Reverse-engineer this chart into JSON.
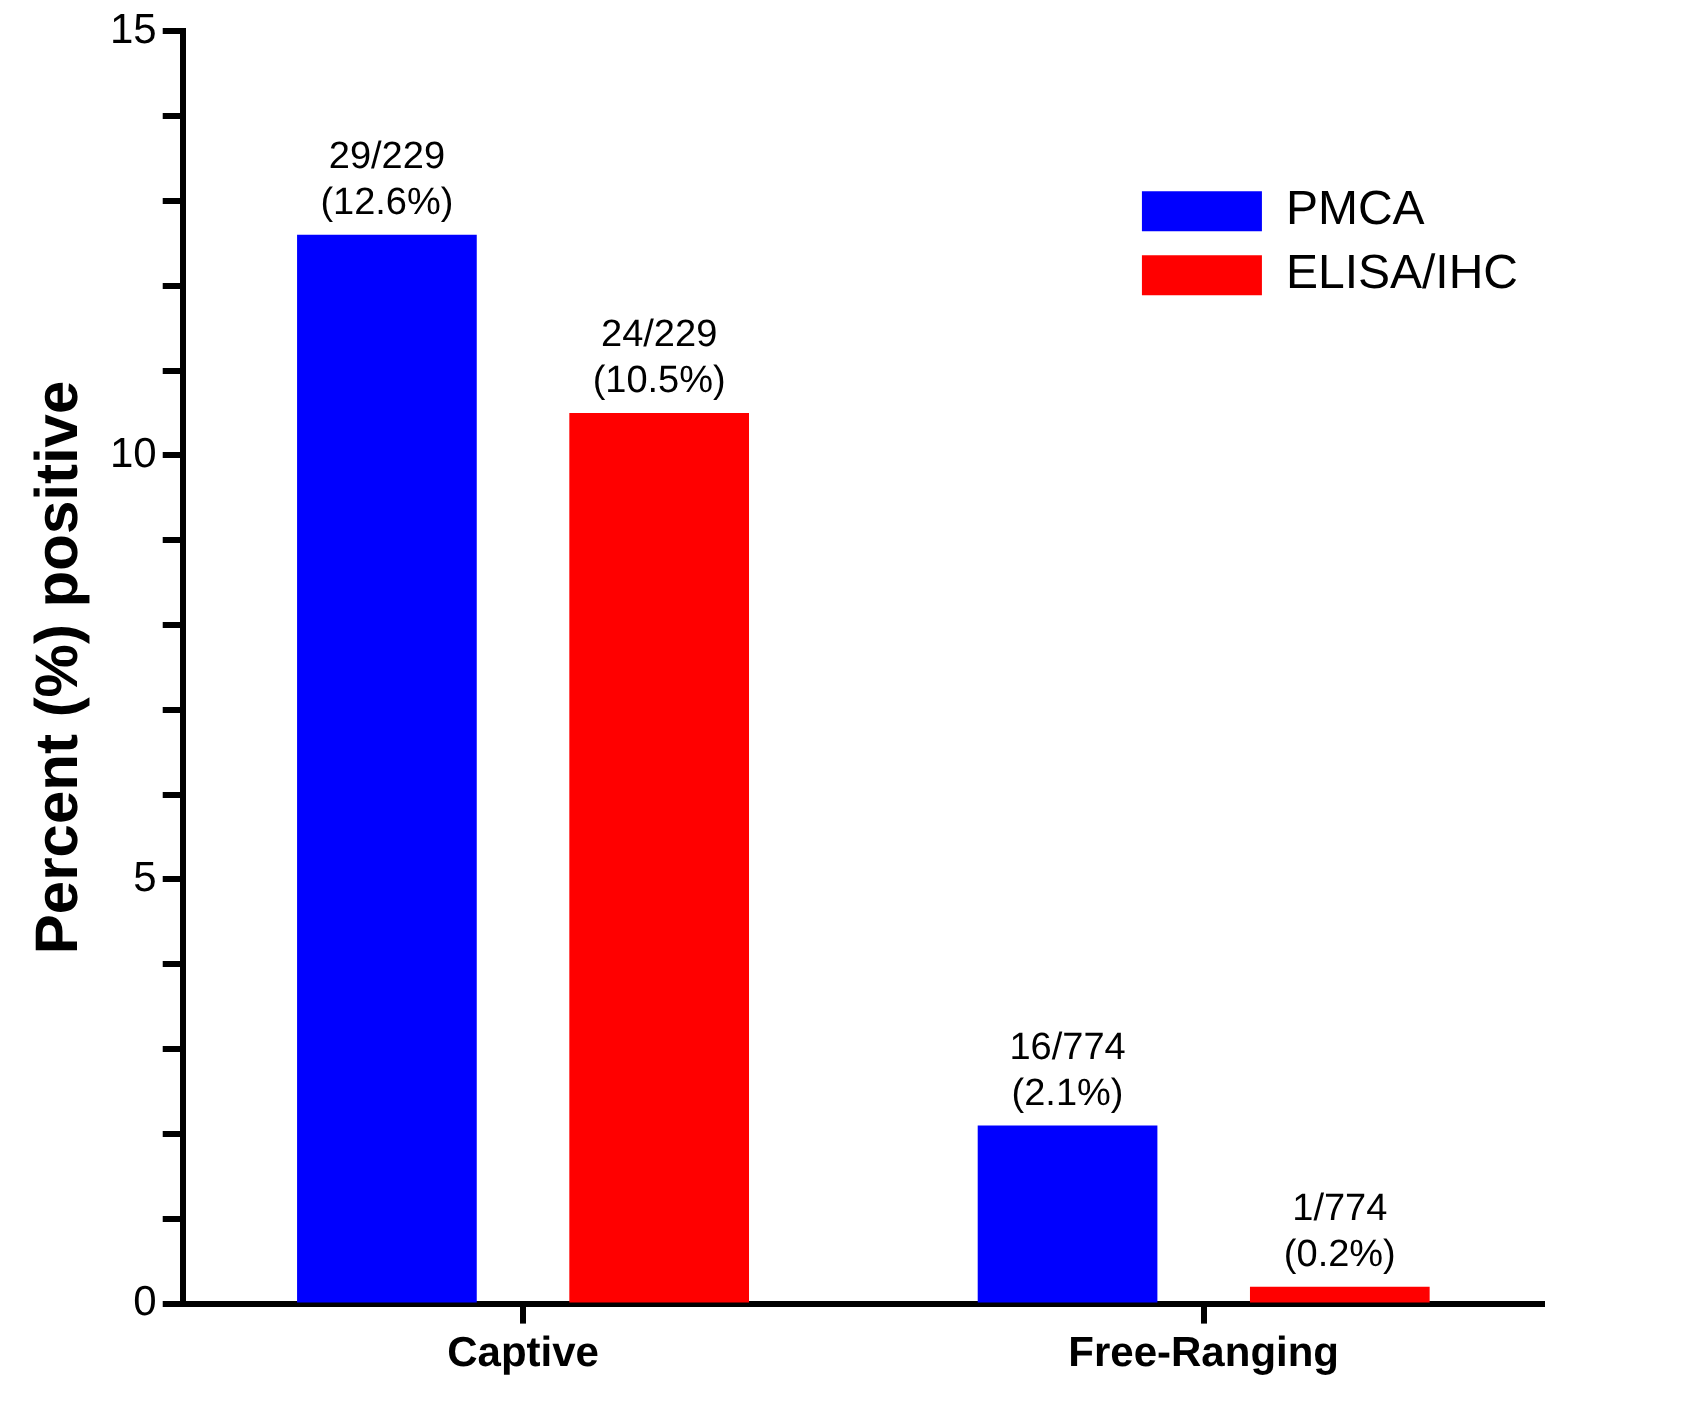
{
  "chart_data": {
    "type": "bar",
    "ylabel": "Percent (%) positive",
    "categories": [
      "Captive",
      "Free-Ranging"
    ],
    "series": [
      {
        "name": "PMCA",
        "color": "#0000ff",
        "values": [
          12.6,
          2.1
        ],
        "value_labels": [
          "29/229 (12.6%)",
          "16/774 (2.1%)"
        ]
      },
      {
        "name": "ELISA/IHC",
        "color": "#ff0000",
        "values": [
          10.5,
          0.2
        ],
        "value_labels": [
          "24/229 (10.5%)",
          "1/774 (0.2%)"
        ]
      }
    ],
    "ylim": [
      0,
      15
    ],
    "yticks": [
      0,
      {
        "value": 1,
        "label": null
      },
      {
        "value": 2,
        "label": null
      },
      {
        "value": 3,
        "label": null
      },
      {
        "value": 4,
        "label": null
      },
      5,
      {
        "value": 6,
        "label": null
      },
      {
        "value": 7,
        "label": null
      },
      {
        "value": 8,
        "label": null
      },
      {
        "value": 9,
        "label": null
      },
      10,
      {
        "value": 11,
        "label": null
      },
      {
        "value": 12,
        "label": null
      },
      {
        "value": 13,
        "label": null
      },
      {
        "value": 14,
        "label": null
      },
      15
    ],
    "grid": false,
    "legend": "top right"
  }
}
